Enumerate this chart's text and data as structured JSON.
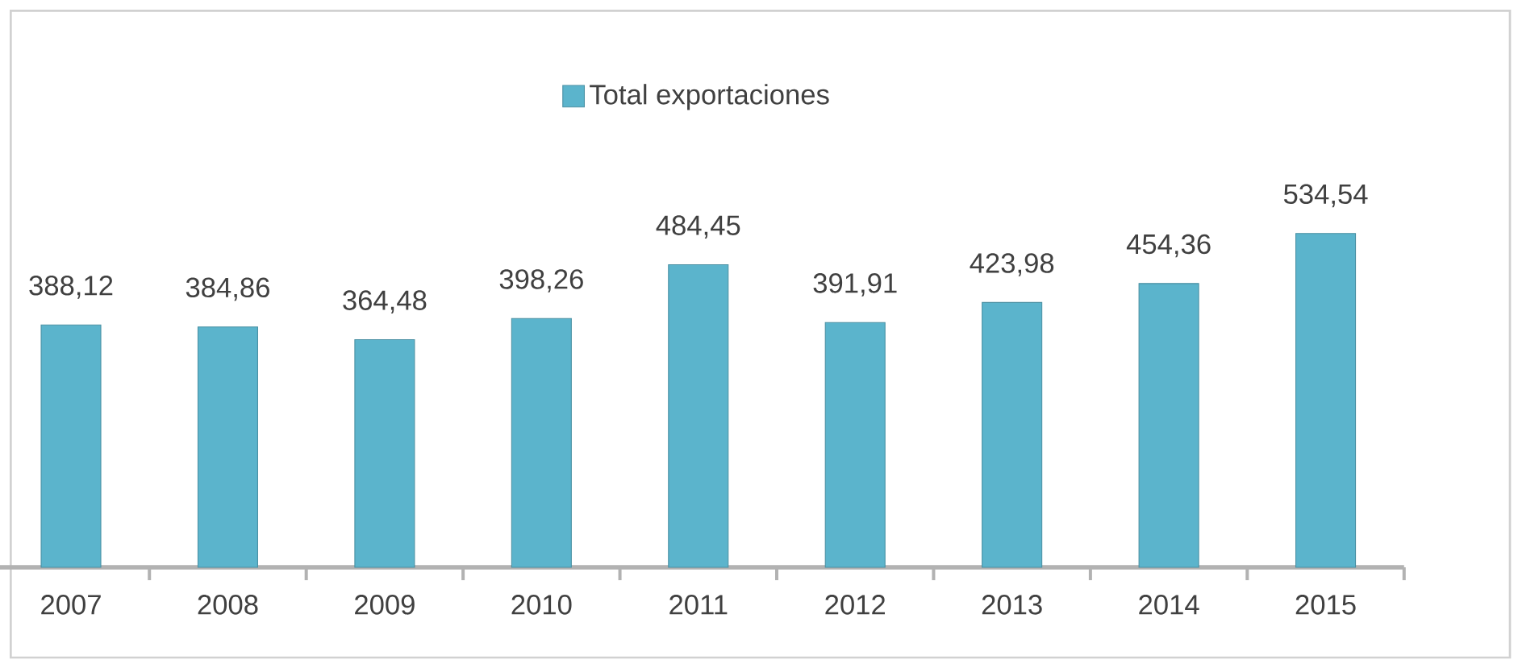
{
  "chart_data": {
    "type": "bar",
    "categories": [
      "2007",
      "2008",
      "2009",
      "2010",
      "2011",
      "2012",
      "2013",
      "2014",
      "2015"
    ],
    "series": [
      {
        "name": "Total exportaciones",
        "color": "#5bb4cc",
        "values": [
          388.12,
          384.86,
          364.48,
          398.26,
          484.45,
          391.91,
          423.98,
          454.36,
          534.54
        ],
        "value_labels": [
          "388,12",
          "384,86",
          "364,48",
          "398,26",
          "484,45",
          "391,91",
          "423,98",
          "454,36",
          "534,54"
        ]
      }
    ],
    "legend": "top",
    "tick_labels": "x"
  }
}
